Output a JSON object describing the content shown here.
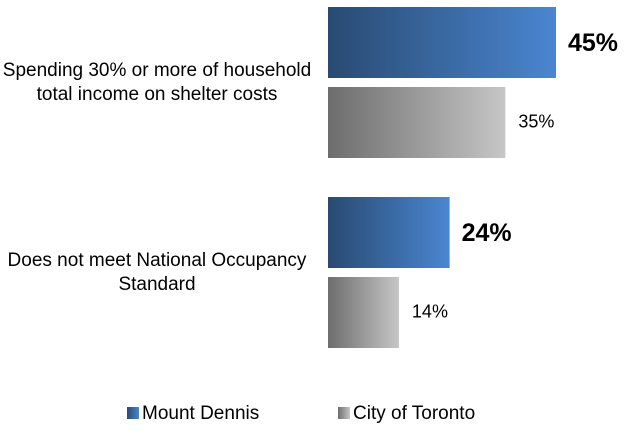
{
  "chart_data": {
    "type": "hbar",
    "categories": [
      "Spending 30% or more of household total income on shelter costs",
      "Does not meet National Occupancy Standard"
    ],
    "series": [
      {
        "name": "Mount Dennis",
        "color": "#4a86d0",
        "values": [
          45,
          24
        ],
        "value_labels": [
          "45%",
          "24%"
        ]
      },
      {
        "name": "City of Toronto",
        "color": "#c6c6c6",
        "values": [
          35,
          14
        ],
        "value_labels": [
          "35%",
          "14%"
        ]
      }
    ],
    "legend": "bottom"
  }
}
